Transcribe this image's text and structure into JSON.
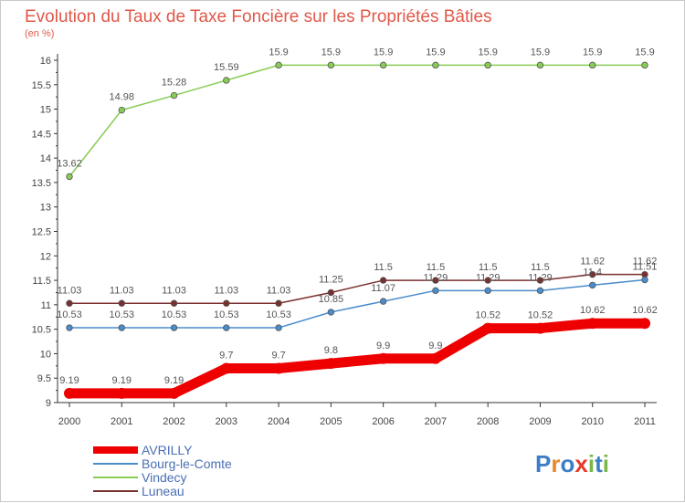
{
  "chart_data": {
    "type": "line",
    "title": "Evolution du Taux de Taxe Foncière sur les Propriétés Bâties",
    "unit_label": "(en %)",
    "xlabel": "",
    "ylabel": "",
    "categories": [
      "2000",
      "2001",
      "2002",
      "2003",
      "2004",
      "2005",
      "2006",
      "2007",
      "2008",
      "2009",
      "2010",
      "2011"
    ],
    "ylim": [
      9,
      16
    ],
    "y_ticks": [
      "9",
      "9.5",
      "10",
      "10.5",
      "11",
      "11.5",
      "12",
      "12.5",
      "13",
      "13.5",
      "14",
      "14.5",
      "15",
      "15.5",
      "16"
    ],
    "grid": false,
    "legend_position": "bottom-left",
    "series": [
      {
        "name": "AVRILLY",
        "color": "#ee0000",
        "values": [
          9.19,
          9.19,
          9.19,
          9.7,
          9.7,
          9.8,
          9.9,
          9.9,
          10.52,
          10.52,
          10.62,
          10.62
        ],
        "labels": [
          "9.19",
          "9.19",
          "9.19",
          "9.7",
          "9.7",
          "9.8",
          "9.9",
          "9.9",
          "10.52",
          "10.52",
          "10.62",
          "10.62"
        ]
      },
      {
        "name": "Bourg-le-Comte",
        "color": "#4a8ccc",
        "values": [
          10.53,
          10.53,
          10.53,
          10.53,
          10.53,
          10.85,
          11.07,
          11.29,
          11.29,
          11.29,
          11.4,
          11.51
        ],
        "labels": [
          "10.53",
          "10.53",
          "10.53",
          "10.53",
          "10.53",
          "10.85",
          "11.07",
          "11.29",
          "11.29",
          "11.29",
          "11.4",
          "11.51"
        ]
      },
      {
        "name": "Vindecy",
        "color": "#88cc55",
        "values": [
          13.62,
          14.98,
          15.28,
          15.59,
          15.9,
          15.9,
          15.9,
          15.9,
          15.9,
          15.9,
          15.9,
          15.9
        ],
        "labels": [
          "13.62",
          "14.98",
          "15.28",
          "15.59",
          "15.9",
          "15.9",
          "15.9",
          "15.9",
          "15.9",
          "15.9",
          "15.9",
          "15.9"
        ]
      },
      {
        "name": "Luneau",
        "color": "#7a2f2f",
        "values": [
          11.03,
          11.03,
          11.03,
          11.03,
          11.03,
          11.25,
          11.5,
          11.5,
          11.5,
          11.5,
          11.62,
          11.62
        ],
        "labels": [
          "11.03",
          "11.03",
          "11.03",
          "11.03",
          "11.03",
          "11.25",
          "11.5",
          "11.5",
          "11.5",
          "11.5",
          "11.62",
          "11.62"
        ]
      }
    ]
  },
  "logo": {
    "text": "Proxiti",
    "letters": [
      "P",
      "r",
      "o",
      "x",
      "i",
      "t",
      "i"
    ],
    "colors": [
      "#3d7fc4",
      "#e8882a",
      "#3d7fc4",
      "#e53a2c",
      "#7ab648",
      "#3d7fc4",
      "#7ab648"
    ]
  }
}
